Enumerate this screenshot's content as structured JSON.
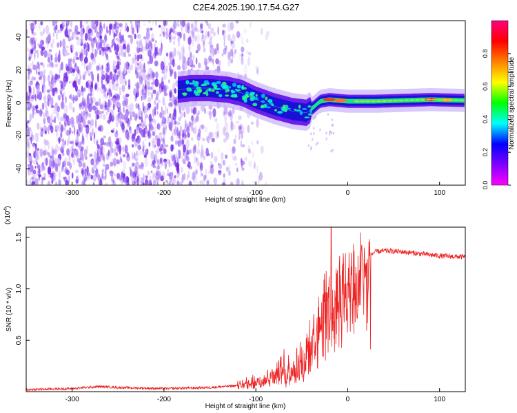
{
  "figure": {
    "title": "C2E4.2025.190.17.54.G27"
  },
  "chart_data": [
    {
      "type": "heatmap",
      "xlabel": "Height of straight line (km)",
      "ylabel": "Frequency (Hz)",
      "xlim": [
        -350,
        128
      ],
      "ylim": [
        -50,
        50
      ],
      "xticks": [
        -300,
        -200,
        -100,
        0,
        100
      ],
      "yticks": [
        -40,
        -20,
        0,
        20,
        40
      ],
      "grid": false,
      "colorbar": {
        "label": "Normalized spectral amplitude",
        "range": [
          0,
          1
        ],
        "ticks": [
          0.0,
          0.2,
          0.4,
          0.6,
          0.8
        ],
        "colormap": [
          "#ff00ff",
          "#8000ff",
          "#0000ff",
          "#00ffff",
          "#00ff00",
          "#ffff00",
          "#ff8000",
          "#ff0000",
          "#ff0080"
        ]
      },
      "ridge": {
        "x": [
          -185,
          -170,
          -150,
          -130,
          -115,
          -100,
          -80,
          -60,
          -45,
          -38,
          -30,
          -20,
          0,
          30,
          60,
          90,
          128
        ],
        "y": [
          8,
          9,
          9,
          8,
          6,
          2,
          -2,
          -5,
          -6,
          -3,
          1,
          2,
          1,
          1,
          1.5,
          2,
          1.5
        ]
      },
      "noise_region": [
        -350,
        -120
      ],
      "colors": {
        "ridge_band": "#3000e0",
        "noise": "#7a2de8"
      }
    },
    {
      "type": "line",
      "xlabel": "Height of straight line (km)",
      "ylabel": "SNR (10 * v/v)",
      "yscale_note": "(x10",
      "yscale_exp": "4",
      "xlim": [
        -350,
        128
      ],
      "ylim": [
        0,
        1.6
      ],
      "xticks": [
        -300,
        -200,
        -100,
        0,
        100
      ],
      "yticks": [
        0.5,
        1.0,
        1.5
      ],
      "series": [
        {
          "color": "#ee2222",
          "x": [
            -350,
            -300,
            -270,
            -250,
            -200,
            -150,
            -120,
            -100,
            -80,
            -60,
            -45,
            -35,
            -25,
            -18,
            -10,
            0,
            10,
            20,
            30,
            40,
            60,
            80,
            100,
            128
          ],
          "y": [
            0.02,
            0.03,
            0.05,
            0.04,
            0.03,
            0.04,
            0.06,
            0.1,
            0.18,
            0.25,
            0.35,
            0.6,
            0.85,
            1.0,
            1.0,
            1.05,
            1.15,
            1.3,
            1.36,
            1.37,
            1.36,
            1.34,
            1.32,
            1.31
          ]
        }
      ]
    }
  ]
}
